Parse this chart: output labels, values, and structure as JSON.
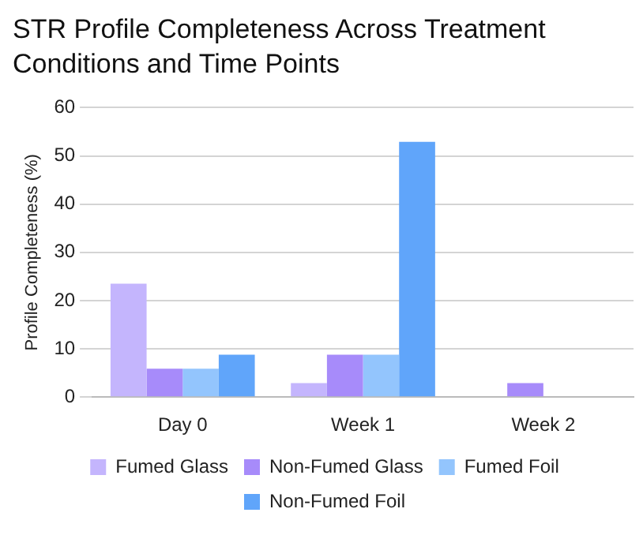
{
  "chart_data": {
    "type": "bar",
    "title": "STR Profile Completeness Across Treatment Conditions and Time Points",
    "ylabel": "Profile Completeness (%)",
    "categories": [
      "Day 0",
      "Week 1",
      "Week 2"
    ],
    "series": [
      {
        "name": "Fumed Glass",
        "color": "#c4b5fd",
        "values": [
          23.5,
          2.9,
          0
        ]
      },
      {
        "name": "Non-Fumed Glass",
        "color": "#a78bfa",
        "values": [
          5.9,
          8.8,
          2.9
        ]
      },
      {
        "name": "Fumed Foil",
        "color": "#93c5fd",
        "values": [
          5.9,
          8.8,
          0
        ]
      },
      {
        "name": "Non-Fumed Foil",
        "color": "#60a5fa",
        "values": [
          8.8,
          52.9,
          0
        ]
      }
    ],
    "ylim": [
      0,
      60
    ],
    "yticks": [
      0,
      10,
      20,
      30,
      40,
      50,
      60
    ],
    "grid": "y",
    "legend": "bottom"
  }
}
